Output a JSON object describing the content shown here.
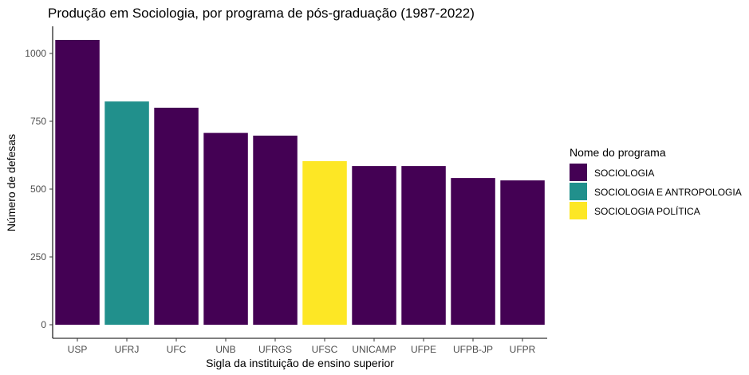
{
  "chart_data": {
    "type": "bar",
    "title": "Produção em Sociologia, por programa de pós-graduação (1987-2022)",
    "xlabel": "Sigla da instituição de ensino superior",
    "ylabel": "Número de defesas",
    "categories": [
      "USP",
      "UFRJ",
      "UFC",
      "UNB",
      "UFRGS",
      "UFSC",
      "UNICAMP",
      "UFPE",
      "UFPB-JP",
      "UFPR"
    ],
    "values": [
      1050,
      823,
      800,
      707,
      697,
      603,
      585,
      585,
      541,
      532
    ],
    "programs": [
      "SOCIOLOGIA",
      "SOCIOLOGIA E ANTROPOLOGIA",
      "SOCIOLOGIA",
      "SOCIOLOGIA",
      "SOCIOLOGIA",
      "SOCIOLOGIA POLÍTICA",
      "SOCIOLOGIA",
      "SOCIOLOGIA",
      "SOCIOLOGIA",
      "SOCIOLOGIA"
    ],
    "ylim": [
      0,
      1100
    ],
    "yticks": [
      0,
      250,
      500,
      750,
      1000
    ],
    "grid": false,
    "legend": {
      "title": "Nome do programa",
      "position": "right",
      "entries": [
        {
          "name": "SOCIOLOGIA",
          "color": "#440154"
        },
        {
          "name": "SOCIOLOGIA E ANTROPOLOGIA",
          "color": "#21908C"
        },
        {
          "name": "SOCIOLOGIA POLÍTICA",
          "color": "#FDE725"
        }
      ]
    }
  }
}
